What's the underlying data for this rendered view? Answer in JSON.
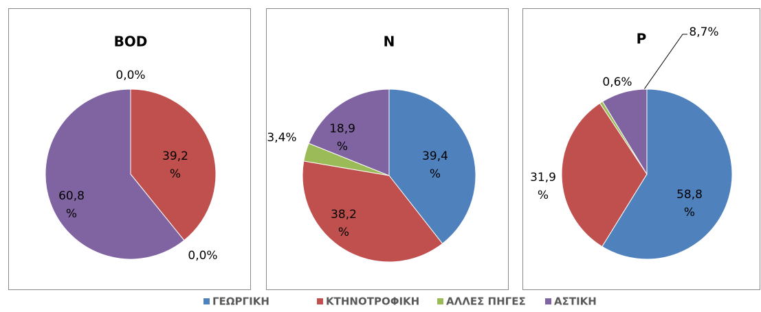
{
  "chart_data": [
    {
      "type": "pie",
      "title": "BOD",
      "values": [
        0.0,
        39.2,
        0.0,
        60.8
      ],
      "value_labels": [
        "0,0%",
        "39,2\n%",
        "0,0%",
        "60,8\n%"
      ]
    },
    {
      "type": "pie",
      "title": "N",
      "values": [
        39.4,
        38.2,
        3.4,
        18.9
      ],
      "value_labels": [
        "39,4\n%",
        "38,2\n%",
        "3,4%",
        "18,9\n%"
      ]
    },
    {
      "type": "pie",
      "title": "P",
      "values": [
        58.8,
        31.9,
        0.6,
        8.7
      ],
      "value_labels": [
        "58,8\n%",
        "31,9\n%",
        "0,6%",
        "8,7%"
      ]
    }
  ],
  "legend": {
    "names": [
      "ΓΕΩΡΓΙΚΗ",
      "ΚΤΗΝΟΤΡΟΦΙΚΗ",
      "ΑΛΛΕΣ ΠΗΓΕΣ",
      "ΑΣΤΙΚΗ"
    ],
    "colors": [
      "#4f81bd",
      "#c0504d",
      "#9bbb59",
      "#8064a2"
    ]
  }
}
